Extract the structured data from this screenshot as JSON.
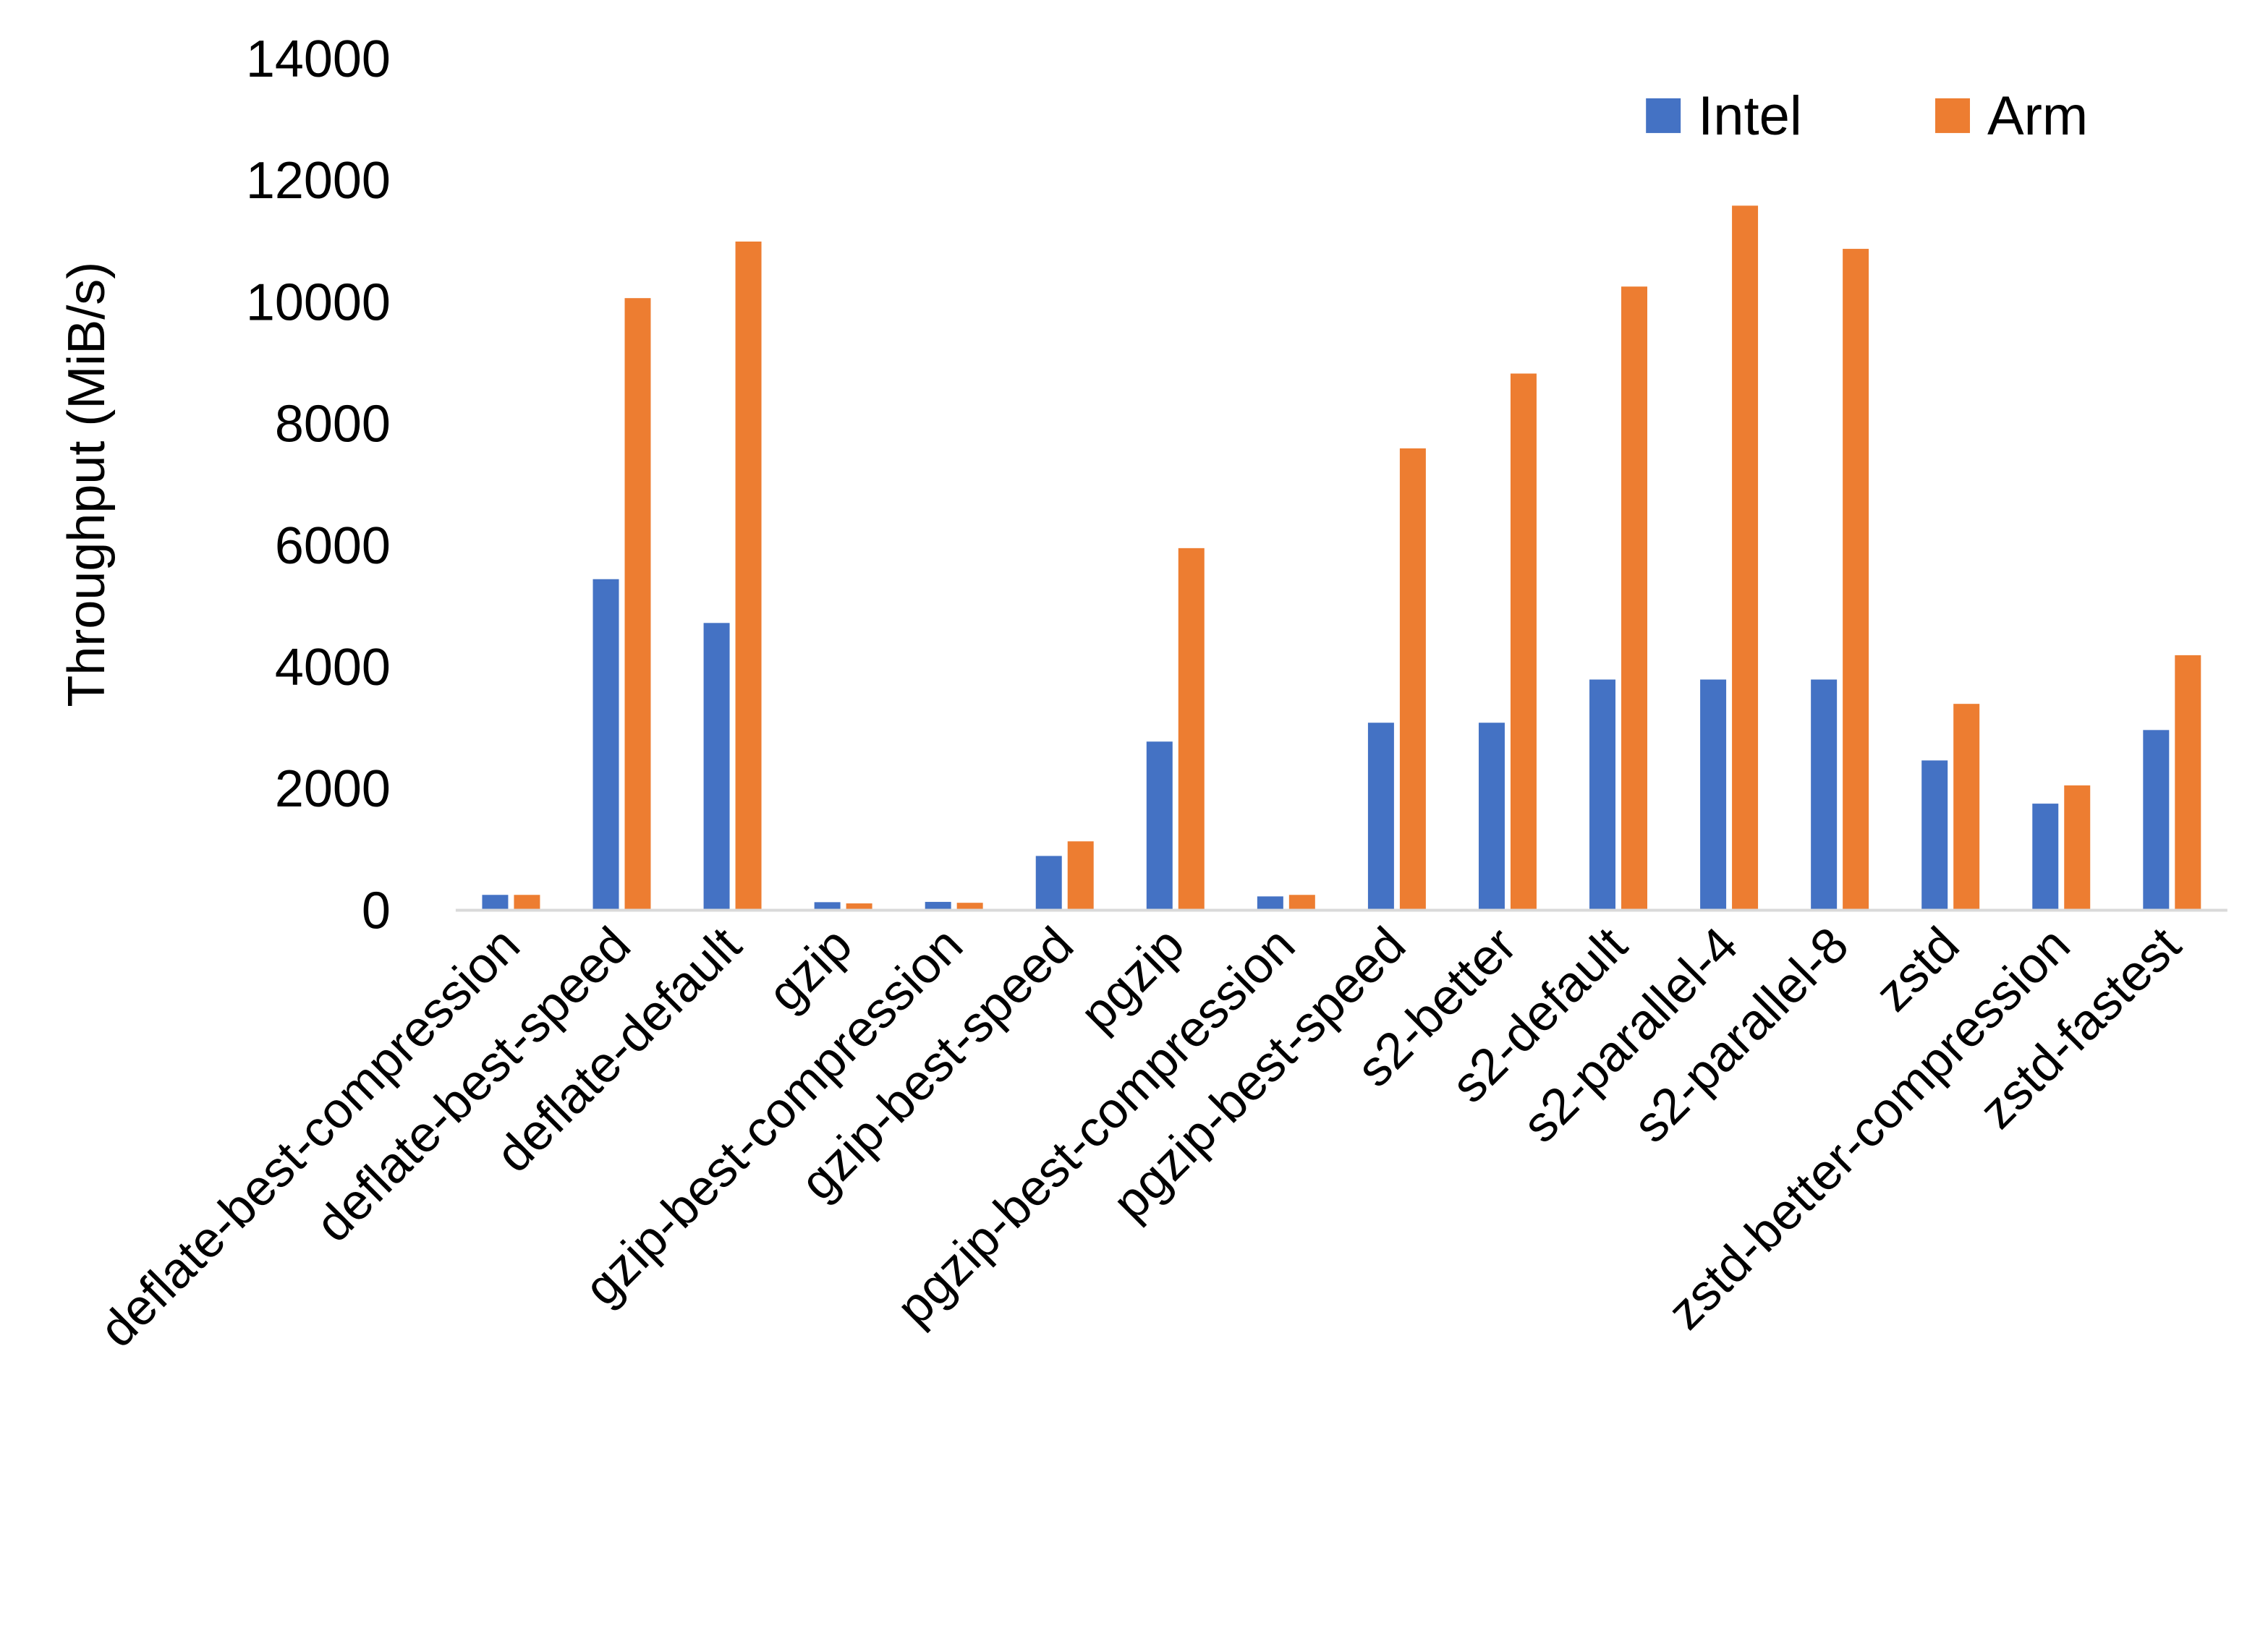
{
  "chart_data": {
    "type": "bar",
    "title": "",
    "xlabel": "",
    "ylabel": "Throughput (MiB/s)",
    "ylim": [
      0,
      14000
    ],
    "yticks": [
      0,
      2000,
      4000,
      6000,
      8000,
      10000,
      12000,
      14000
    ],
    "grid": false,
    "legend_position": "top-right",
    "categories": [
      "deflate-best-compression",
      "deflate-best-speed",
      "deflate-default",
      "gzip",
      "gzip-best-compression",
      "gzip-best-speed",
      "pgzip",
      "pgzip-best-compression",
      "pgzip-best-speed",
      "s2-better",
      "s2-default",
      "s2-parallel-4",
      "s2-parallel-8",
      "zstd",
      "zstd-better-compression",
      "zstd-fastest"
    ],
    "series": [
      {
        "name": "Intel",
        "color": "#4472C4",
        "values": [
          240,
          5430,
          4710,
          120,
          125,
          880,
          2760,
          215,
          3070,
          3070,
          3780,
          3780,
          3780,
          2450,
          1740,
          2950
        ]
      },
      {
        "name": "Arm",
        "color": "#ED7D31",
        "values": [
          240,
          10050,
          10980,
          100,
          110,
          1120,
          5940,
          240,
          7580,
          8810,
          10240,
          11570,
          10860,
          3380,
          2040,
          4180
        ]
      }
    ]
  }
}
